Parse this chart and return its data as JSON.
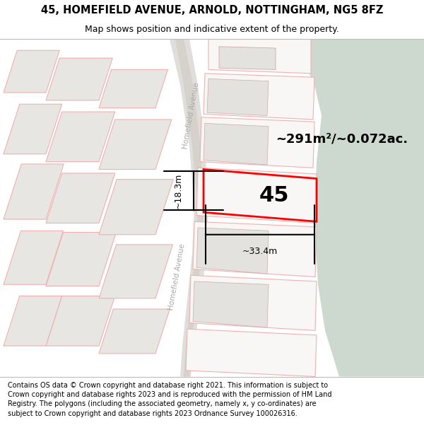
{
  "title_line1": "45, HOMEFIELD AVENUE, ARNOLD, NOTTINGHAM, NG5 8FZ",
  "title_line2": "Map shows position and indicative extent of the property.",
  "footer_text": "Contains OS data © Crown copyright and database right 2021. This information is subject to Crown copyright and database rights 2023 and is reproduced with the permission of HM Land Registry. The polygons (including the associated geometry, namely x, y co-ordinates) are subject to Crown copyright and database rights 2023 Ordnance Survey 100026316.",
  "map_bg": "#f0eeeb",
  "plot_fill": "#e8e6e2",
  "white_fill": "#f8f7f5",
  "green_fill": "#cdd9cf",
  "highlight_fill": "#ffffff",
  "plot_edge_light": "#f0b0b0",
  "plot_edge_dark": "#d08080",
  "highlight_edge": "#ff0000",
  "road_center_color": "#dcdad6",
  "road_label_color": "#aaaaaa",
  "property_number": "45",
  "area_text": "~291m²/~0.072ac.",
  "dim_width": "~33.4m",
  "dim_height": "~18.3m",
  "title_bg": "#ffffff",
  "footer_bg": "#ffffff",
  "title_fontsize": 10.5,
  "subtitle_fontsize": 9,
  "footer_fontsize": 7.0,
  "area_fontsize": 13,
  "dim_fontsize": 9,
  "propnum_fontsize": 22
}
